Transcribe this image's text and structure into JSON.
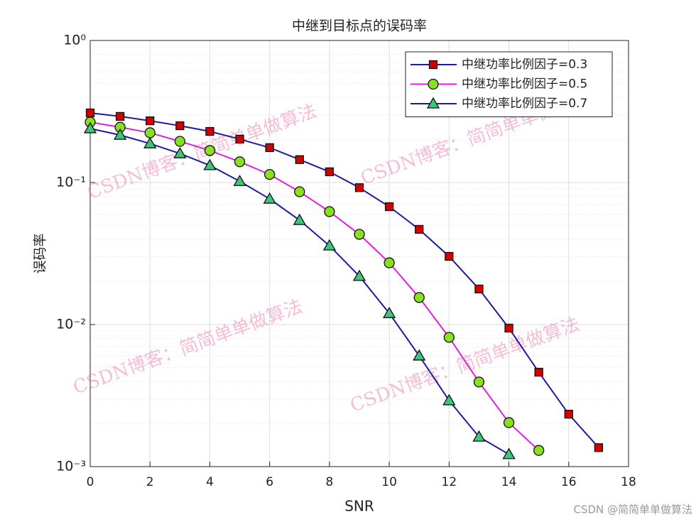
{
  "chart_data": {
    "type": "line",
    "title": "中继到目标点的误码率",
    "xlabel": "SNR",
    "ylabel": "误码率",
    "xlim": [
      0,
      18
    ],
    "xticks": [
      0,
      2,
      4,
      6,
      8,
      10,
      12,
      14,
      16,
      18
    ],
    "ylim": [
      0.001,
      1
    ],
    "log_y": true,
    "yticks": [
      {
        "value": 0.001,
        "label": "10⁻³"
      },
      {
        "value": 0.01,
        "label": "10⁻²"
      },
      {
        "value": 0.1,
        "label": "10⁻¹"
      },
      {
        "value": 1,
        "label": "10⁰"
      }
    ],
    "yminorticks": [
      0.002,
      0.003,
      0.004,
      0.005,
      0.006,
      0.007,
      0.008,
      0.009,
      0.02,
      0.03,
      0.04,
      0.05,
      0.06,
      0.07,
      0.08,
      0.09,
      0.2,
      0.3,
      0.4,
      0.5,
      0.6,
      0.7,
      0.8,
      0.9
    ],
    "grid": true,
    "legend": "northeast",
    "series": [
      {
        "name": "中继功率比例因子=0.3",
        "color": "#1c1ca0",
        "marker": "square",
        "marker_color": "#d40000",
        "x": [
          0,
          1,
          2,
          3,
          4,
          5,
          6,
          7,
          8,
          9,
          10,
          11,
          12,
          13,
          14,
          15,
          16,
          17
        ],
        "values": [
          0.309,
          0.292,
          0.272,
          0.251,
          0.229,
          0.202,
          0.176,
          0.145,
          0.119,
          0.092,
          0.0676,
          0.0468,
          0.0302,
          0.0178,
          0.00944,
          0.00462,
          0.00234,
          0.00136
        ]
      },
      {
        "name": "中继功率比例因子=0.5",
        "color": "#e020e0",
        "marker": "circle",
        "marker_color": "#88e020",
        "x": [
          0,
          1,
          2,
          3,
          4,
          5,
          6,
          7,
          8,
          9,
          10,
          11,
          12,
          13,
          14,
          15
        ],
        "values": [
          0.266,
          0.245,
          0.224,
          0.195,
          0.168,
          0.14,
          0.114,
          0.0861,
          0.0624,
          0.0432,
          0.0272,
          0.0155,
          0.00813,
          0.00394,
          0.00204,
          0.0013
        ]
      },
      {
        "name": "中继功率比例因子=0.7",
        "color": "#1c1ca0",
        "marker": "triangle",
        "marker_color": "#40c47c",
        "x": [
          0,
          1,
          2,
          3,
          4,
          5,
          6,
          7,
          8,
          9,
          10,
          11,
          12,
          13,
          14
        ],
        "values": [
          0.24,
          0.216,
          0.188,
          0.16,
          0.132,
          0.102,
          0.0767,
          0.0543,
          0.0359,
          0.0219,
          0.012,
          0.00603,
          0.00292,
          0.00162,
          0.00122
        ]
      }
    ],
    "watermarks": [
      "CSDN博客：简简单单做算法",
      "CSDN博客：简简单单做算法",
      "CSDN博客：简简单单做算法",
      "CSDN博客：简简单单做算法"
    ],
    "footer": "CSDN @简简单单做算法"
  }
}
